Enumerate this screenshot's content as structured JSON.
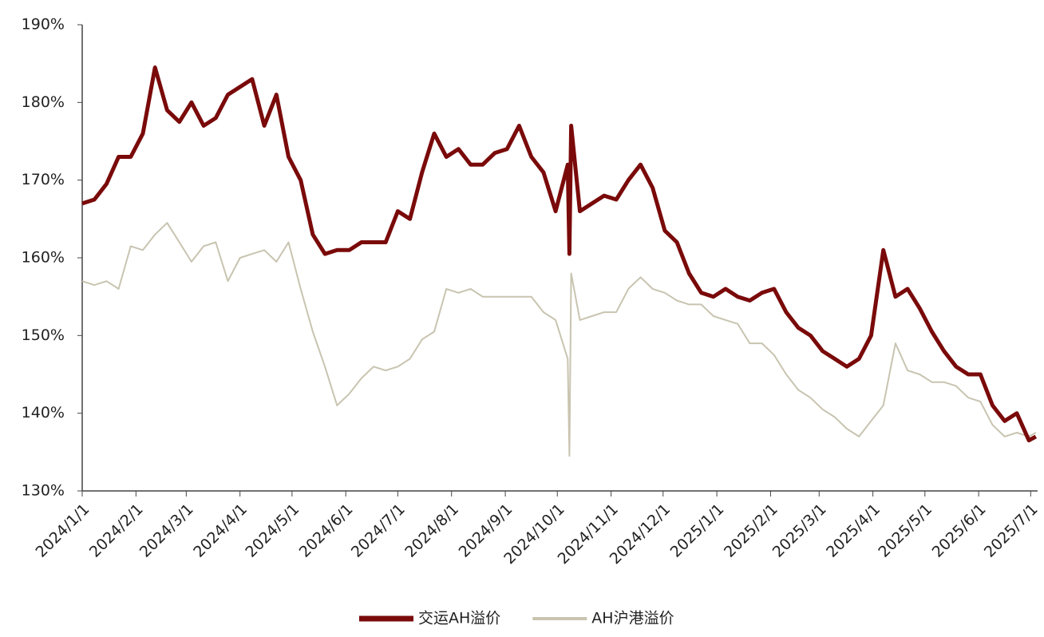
{
  "chart_data": {
    "type": "line",
    "x": [
      "2024/1/1",
      "2024/1/8",
      "2024/1/15",
      "2024/1/22",
      "2024/1/29",
      "2024/2/5",
      "2024/2/12",
      "2024/2/19",
      "2024/2/26",
      "2024/3/4",
      "2024/3/11",
      "2024/3/18",
      "2024/3/25",
      "2024/4/1",
      "2024/4/8",
      "2024/4/15",
      "2024/4/22",
      "2024/4/29",
      "2024/5/6",
      "2024/5/13",
      "2024/5/20",
      "2024/5/27",
      "2024/6/3",
      "2024/6/10",
      "2024/6/17",
      "2024/6/24",
      "2024/7/1",
      "2024/7/8",
      "2024/7/15",
      "2024/7/22",
      "2024/7/29",
      "2024/8/5",
      "2024/8/12",
      "2024/8/19",
      "2024/8/26",
      "2024/9/2",
      "2024/9/9",
      "2024/9/16",
      "2024/9/23",
      "2024/9/30",
      "2024/10/7",
      "2024/10/8",
      "2024/10/9",
      "2024/10/14",
      "2024/10/21",
      "2024/10/28",
      "2024/11/4",
      "2024/11/11",
      "2024/11/18",
      "2024/11/25",
      "2024/12/2",
      "2024/12/9",
      "2024/12/16",
      "2024/12/23",
      "2024/12/30",
      "2025/1/6",
      "2025/1/13",
      "2025/1/20",
      "2025/1/27",
      "2025/2/3",
      "2025/2/10",
      "2025/2/17",
      "2025/2/24",
      "2025/3/3",
      "2025/3/10",
      "2025/3/17",
      "2025/3/24",
      "2025/3/31",
      "2025/4/7",
      "2025/4/14",
      "2025/4/21",
      "2025/4/28",
      "2025/5/5",
      "2025/5/12",
      "2025/5/19",
      "2025/5/26",
      "2025/6/2",
      "2025/6/9",
      "2025/6/16",
      "2025/6/23",
      "2025/6/30",
      "2025/7/4"
    ],
    "series": [
      {
        "name": "交运AH溢价",
        "color": "#7a0a0a",
        "values": [
          167,
          167.5,
          169.5,
          173,
          173,
          176,
          184.5,
          179,
          177.5,
          180,
          177,
          178,
          181,
          182,
          183,
          177,
          181,
          173,
          170,
          163,
          160.5,
          161,
          161,
          162,
          162,
          162,
          166,
          165,
          171,
          176,
          173,
          174,
          172,
          172,
          173.5,
          174,
          177,
          173,
          171,
          166,
          172,
          160.5,
          177,
          166,
          167,
          168,
          167.5,
          170,
          172,
          169,
          163.5,
          162,
          158,
          155.5,
          155,
          156,
          155,
          154.5,
          155.5,
          156,
          153,
          151,
          150,
          148,
          147,
          146,
          147,
          150,
          161,
          155,
          156,
          153.5,
          150.5,
          148,
          146,
          145,
          145,
          141,
          139,
          140,
          136.5,
          137
        ]
      },
      {
        "name": "AH沪港溢价",
        "color": "#c8c4b0",
        "values": [
          157,
          156.5,
          157,
          156,
          161.5,
          161,
          163,
          164.5,
          162,
          159.5,
          161.5,
          162,
          157,
          160,
          160.5,
          161,
          159.5,
          162,
          156,
          150.5,
          146,
          141,
          142.5,
          144.5,
          146,
          145.5,
          146,
          147,
          149.5,
          150.5,
          156,
          155.5,
          156,
          155,
          155,
          155,
          155,
          155,
          153,
          152,
          147,
          134.5,
          158,
          152,
          152.5,
          153,
          153,
          156,
          157.5,
          156,
          155.5,
          154.5,
          154,
          154,
          152.5,
          152,
          151.5,
          149,
          149,
          147.5,
          145,
          143,
          142,
          140.5,
          139.5,
          138,
          137,
          139,
          141,
          149,
          145.5,
          145,
          144,
          144,
          143.5,
          142,
          141.5,
          138.5,
          137,
          137.5,
          137,
          137.5
        ]
      }
    ],
    "xlim": [
      "2024/1/1",
      "2025/7/5"
    ],
    "xticks": [
      "2024/1/1",
      "2024/2/1",
      "2024/3/1",
      "2024/4/1",
      "2024/5/1",
      "2024/6/1",
      "2024/7/1",
      "2024/8/1",
      "2024/9/1",
      "2024/10/1",
      "2024/11/1",
      "2024/12/1",
      "2025/1/1",
      "2025/2/1",
      "2025/3/1",
      "2025/4/1",
      "2025/5/1",
      "2025/6/1",
      "2025/7/1"
    ],
    "ylim": [
      130,
      190
    ],
    "yticks": [
      {
        "value": 130,
        "label": "130%"
      },
      {
        "value": 140,
        "label": "140%"
      },
      {
        "value": 150,
        "label": "150%"
      },
      {
        "value": 160,
        "label": "160%"
      },
      {
        "value": 170,
        "label": "170%"
      },
      {
        "value": 180,
        "label": "180%"
      },
      {
        "value": 190,
        "label": "190%"
      }
    ],
    "legend": "bottom"
  }
}
